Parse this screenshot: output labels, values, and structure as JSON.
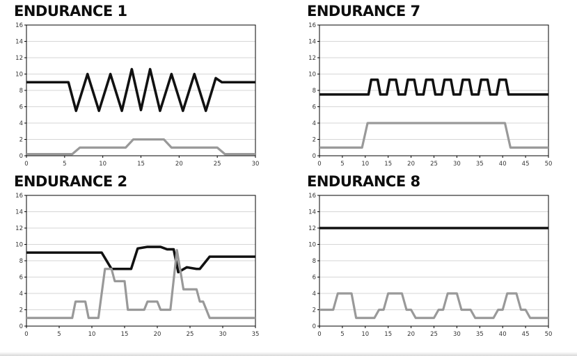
{
  "colors": {
    "black_series": "#111111",
    "gray_series": "#999999",
    "grid": "#c9c9c9",
    "axis": "#000000",
    "tick_text": "#333333"
  },
  "chart_data": [
    {
      "id": "endurance-1",
      "type": "line",
      "title": "ENDURANCE 1",
      "xlim": [
        0,
        30
      ],
      "ylim": [
        0,
        16
      ],
      "xtick_step": 5,
      "ytick_step": 2,
      "grid": "horizontal",
      "legend": "none",
      "xticks": [
        0,
        5,
        10,
        15,
        20,
        25,
        30
      ],
      "yticks": [
        0,
        2,
        4,
        6,
        8,
        10,
        12,
        14,
        16
      ],
      "series": [
        {
          "name": "black-profile",
          "color": "#111111",
          "width": 3.6,
          "points": [
            [
              0,
              9
            ],
            [
              5.5,
              9
            ],
            [
              6.5,
              5.5
            ],
            [
              8,
              10
            ],
            [
              9.5,
              5.5
            ],
            [
              11,
              10
            ],
            [
              12.5,
              5.5
            ],
            [
              13.8,
              10.6
            ],
            [
              15,
              5.6
            ],
            [
              16.2,
              10.6
            ],
            [
              17.5,
              5.5
            ],
            [
              19,
              10
            ],
            [
              20.5,
              5.5
            ],
            [
              22,
              10
            ],
            [
              23.5,
              5.5
            ],
            [
              24.8,
              9.5
            ],
            [
              25.6,
              9
            ],
            [
              30,
              9
            ]
          ]
        },
        {
          "name": "gray-profile",
          "color": "#999999",
          "width": 3.2,
          "points": [
            [
              0,
              0.2
            ],
            [
              6,
              0.2
            ],
            [
              7,
              1
            ],
            [
              13,
              1
            ],
            [
              14,
              2
            ],
            [
              18,
              2
            ],
            [
              19,
              1
            ],
            [
              25,
              1
            ],
            [
              26,
              0.2
            ],
            [
              30,
              0.2
            ]
          ]
        }
      ]
    },
    {
      "id": "endurance-7",
      "type": "line",
      "title": "ENDURANCE 7",
      "xlim": [
        0,
        50
      ],
      "ylim": [
        0,
        16
      ],
      "xtick_step": 5,
      "ytick_step": 2,
      "grid": "horizontal",
      "legend": "none",
      "xticks": [
        0,
        5,
        10,
        15,
        20,
        25,
        30,
        35,
        40,
        45,
        50
      ],
      "yticks": [
        0,
        2,
        4,
        6,
        8,
        10,
        12,
        14,
        16
      ],
      "series": [
        {
          "name": "black-profile",
          "color": "#111111",
          "width": 3.6,
          "points": [
            [
              0,
              7.5
            ],
            [
              10.7,
              7.5
            ],
            [
              11.3,
              9.3
            ],
            [
              12.7,
              9.3
            ],
            [
              13.3,
              7.5
            ],
            [
              14.7,
              7.5
            ],
            [
              15.3,
              9.3
            ],
            [
              16.7,
              9.3
            ],
            [
              17.3,
              7.5
            ],
            [
              18.7,
              7.5
            ],
            [
              19.3,
              9.3
            ],
            [
              20.7,
              9.3
            ],
            [
              21.3,
              7.5
            ],
            [
              22.7,
              7.5
            ],
            [
              23.3,
              9.3
            ],
            [
              24.7,
              9.3
            ],
            [
              25.3,
              7.5
            ],
            [
              26.7,
              7.5
            ],
            [
              27.3,
              9.3
            ],
            [
              28.7,
              9.3
            ],
            [
              29.3,
              7.5
            ],
            [
              30.7,
              7.5
            ],
            [
              31.3,
              9.3
            ],
            [
              32.7,
              9.3
            ],
            [
              33.3,
              7.5
            ],
            [
              34.7,
              7.5
            ],
            [
              35.3,
              9.3
            ],
            [
              36.7,
              9.3
            ],
            [
              37.3,
              7.5
            ],
            [
              38.7,
              7.5
            ],
            [
              39.3,
              9.3
            ],
            [
              40.7,
              9.3
            ],
            [
              41.3,
              7.5
            ],
            [
              50,
              7.5
            ]
          ]
        },
        {
          "name": "gray-profile",
          "color": "#999999",
          "width": 3.2,
          "points": [
            [
              0,
              1
            ],
            [
              9.3,
              1
            ],
            [
              10.5,
              4
            ],
            [
              40.5,
              4
            ],
            [
              41.7,
              1
            ],
            [
              50,
              1
            ]
          ]
        }
      ]
    },
    {
      "id": "endurance-2",
      "type": "line",
      "title": "ENDURANCE 2",
      "xlim": [
        0,
        35
      ],
      "ylim": [
        0,
        16
      ],
      "xtick_step": 5,
      "ytick_step": 2,
      "grid": "horizontal",
      "legend": "none",
      "xticks": [
        0,
        5,
        10,
        15,
        20,
        25,
        30,
        35
      ],
      "yticks": [
        0,
        2,
        4,
        6,
        8,
        10,
        12,
        14,
        16
      ],
      "series": [
        {
          "name": "black-profile",
          "color": "#111111",
          "width": 3.6,
          "points": [
            [
              0,
              9
            ],
            [
              11.5,
              9
            ],
            [
              13,
              7
            ],
            [
              16,
              7
            ],
            [
              17,
              9.5
            ],
            [
              18.5,
              9.7
            ],
            [
              20.5,
              9.7
            ],
            [
              21.5,
              9.4
            ],
            [
              22.5,
              9.4
            ],
            [
              23.2,
              6.6
            ],
            [
              24.5,
              7.2
            ],
            [
              26,
              7
            ],
            [
              26.5,
              7
            ],
            [
              28,
              8.5
            ],
            [
              35,
              8.5
            ]
          ]
        },
        {
          "name": "gray-profile",
          "color": "#999999",
          "width": 3.2,
          "points": [
            [
              0,
              1
            ],
            [
              7,
              1
            ],
            [
              7.5,
              3
            ],
            [
              9,
              3
            ],
            [
              9.5,
              1
            ],
            [
              11,
              1
            ],
            [
              12,
              7
            ],
            [
              13,
              7
            ],
            [
              13.5,
              5.5
            ],
            [
              15,
              5.5
            ],
            [
              15.5,
              2
            ],
            [
              18,
              2
            ],
            [
              18.5,
              3
            ],
            [
              20,
              3
            ],
            [
              20.5,
              2
            ],
            [
              22,
              2
            ],
            [
              23,
              9.3
            ],
            [
              24,
              4.5
            ],
            [
              26,
              4.5
            ],
            [
              26.5,
              3
            ],
            [
              27,
              3
            ],
            [
              28,
              1
            ],
            [
              35,
              1
            ]
          ]
        }
      ]
    },
    {
      "id": "endurance-8",
      "type": "line",
      "title": "ENDURANCE 8",
      "xlim": [
        0,
        50
      ],
      "ylim": [
        0,
        16
      ],
      "xtick_step": 5,
      "ytick_step": 2,
      "grid": "horizontal",
      "legend": "none",
      "xticks": [
        0,
        5,
        10,
        15,
        20,
        25,
        30,
        35,
        40,
        45,
        50
      ],
      "yticks": [
        0,
        2,
        4,
        6,
        8,
        10,
        12,
        14,
        16
      ],
      "series": [
        {
          "name": "black-profile",
          "color": "#111111",
          "width": 3.6,
          "points": [
            [
              0,
              12
            ],
            [
              50,
              12
            ]
          ]
        },
        {
          "name": "gray-profile",
          "color": "#999999",
          "width": 3.2,
          "points": [
            [
              0,
              2
            ],
            [
              3,
              2
            ],
            [
              4,
              4
            ],
            [
              7,
              4
            ],
            [
              8,
              1
            ],
            [
              12,
              1
            ],
            [
              13,
              2
            ],
            [
              14,
              2
            ],
            [
              15,
              4
            ],
            [
              18,
              4
            ],
            [
              19,
              2
            ],
            [
              20,
              2
            ],
            [
              21,
              1
            ],
            [
              25,
              1
            ],
            [
              26,
              2
            ],
            [
              27,
              2
            ],
            [
              28,
              4
            ],
            [
              30,
              4
            ],
            [
              31,
              2
            ],
            [
              33,
              2
            ],
            [
              34,
              1
            ],
            [
              38,
              1
            ],
            [
              39,
              2
            ],
            [
              40,
              2
            ],
            [
              41,
              4
            ],
            [
              43,
              4
            ],
            [
              44,
              2
            ],
            [
              45,
              2
            ],
            [
              46,
              1
            ],
            [
              50,
              1
            ]
          ]
        }
      ]
    }
  ]
}
